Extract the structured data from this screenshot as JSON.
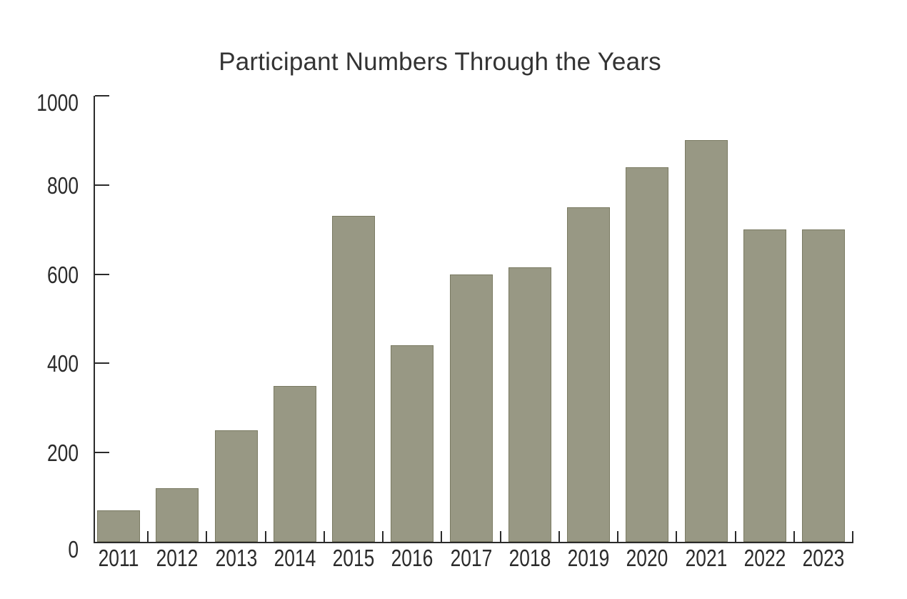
{
  "page": {
    "background": "#ffffff"
  },
  "chart_data": {
    "type": "bar",
    "title": "Participant Numbers Through the Years",
    "categories": [
      "2011",
      "2012",
      "2013",
      "2014",
      "2015",
      "2016",
      "2017",
      "2018",
      "2019",
      "2020",
      "2021",
      "2022",
      "2023"
    ],
    "values": [
      70,
      120,
      250,
      350,
      730,
      440,
      600,
      615,
      750,
      840,
      900,
      700,
      700
    ],
    "xlabel": "",
    "ylabel": "",
    "ylim": [
      0,
      1000
    ],
    "yticks": [
      0,
      200,
      400,
      600,
      800,
      1000
    ],
    "grid": false,
    "legend": false,
    "colors": {
      "bar_fill": "#989884",
      "bar_border": "#7a7a62",
      "axis": "#2b2b2b",
      "label_text": "#2b2b2b",
      "title_text": "#333333"
    }
  }
}
